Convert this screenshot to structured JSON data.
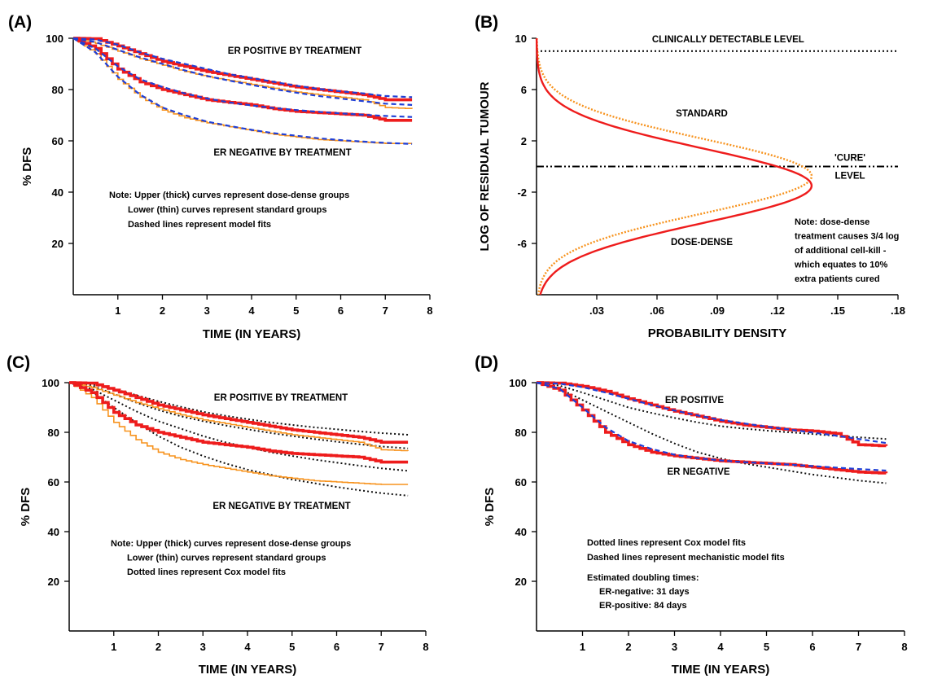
{
  "colors": {
    "dose_dense": "#ee1c1c",
    "standard": "#f7931e",
    "mechanistic_fit": "#1f3fd6",
    "cox_fit": "#111111",
    "axis": "#000000"
  },
  "chart_data": [
    {
      "panel": "(A)",
      "type": "line",
      "xlabel": "TIME (IN YEARS)",
      "ylabel": "% DFS",
      "xlim": [
        0,
        8
      ],
      "ylim": [
        0,
        100
      ],
      "x_ticks": [
        "1",
        "2",
        "3",
        "4",
        "5",
        "6",
        "7",
        "8"
      ],
      "y_ticks": [
        "20",
        "40",
        "60",
        "80",
        "100"
      ],
      "annotations": [
        "ER POSITIVE BY TREATMENT",
        "ER NEGATIVE  BY TREATMENT"
      ],
      "note": [
        "Note: Upper (thick) curves represent dose-dense groups",
        "Lower (thin) curves represent standard groups",
        "Dashed lines represent model fits"
      ],
      "series": [
        {
          "group": "er_pos_dose_dense",
          "style": "step-thick",
          "color": "dose_dense",
          "x": [
            0,
            0.5,
            1,
            1.5,
            2,
            2.5,
            3,
            3.5,
            4,
            4.5,
            5,
            5.5,
            6,
            6.5,
            7,
            7.6
          ],
          "y": [
            100,
            99.8,
            97,
            94,
            91,
            89,
            87,
            85.5,
            84,
            82.5,
            81,
            80,
            79,
            78,
            76,
            76
          ]
        },
        {
          "group": "er_pos_standard",
          "style": "step-thin",
          "color": "standard",
          "x": [
            0,
            0.5,
            1,
            1.5,
            2,
            2.5,
            3,
            3.5,
            4,
            4.5,
            5,
            5.5,
            6,
            6.5,
            7,
            7.6
          ],
          "y": [
            100,
            98,
            95,
            92,
            89.5,
            87,
            85,
            83.5,
            82,
            80.5,
            79,
            78,
            77,
            76,
            73,
            72.5
          ]
        },
        {
          "group": "er_pos_fit_high",
          "style": "dashed",
          "color": "mechanistic_fit",
          "x": [
            0,
            0.5,
            1,
            1.5,
            2,
            2.5,
            3,
            3.5,
            4,
            4.5,
            5,
            5.5,
            6,
            6.5,
            7,
            7.6
          ],
          "y": [
            100,
            99.5,
            97.5,
            94.5,
            92,
            90,
            88,
            86,
            84.5,
            83,
            81.5,
            80.3,
            79.3,
            78.5,
            77.5,
            77
          ]
        },
        {
          "group": "er_pos_fit_low",
          "style": "dashed",
          "color": "mechanistic_fit",
          "x": [
            0,
            0.5,
            1,
            1.5,
            2,
            2.5,
            3,
            3.5,
            4,
            4.5,
            5,
            5.5,
            6,
            6.5,
            7,
            7.6
          ],
          "y": [
            100,
            98.5,
            95.5,
            92.5,
            90,
            87.5,
            85.3,
            83.5,
            81.8,
            80.2,
            78.8,
            77.5,
            76.5,
            75.5,
            74.5,
            74
          ]
        },
        {
          "group": "er_neg_dose_dense",
          "style": "step-thick",
          "color": "dose_dense",
          "x": [
            0,
            0.5,
            1,
            1.5,
            2,
            2.5,
            3,
            3.5,
            4,
            4.5,
            5,
            5.5,
            6,
            6.5,
            7,
            7.6
          ],
          "y": [
            100,
            96,
            88,
            83,
            80,
            78,
            76,
            75,
            74,
            72.5,
            71.5,
            71,
            70.5,
            70,
            68,
            68
          ]
        },
        {
          "group": "er_neg_standard",
          "style": "step-thin",
          "color": "standard",
          "x": [
            0,
            0.5,
            1,
            1.5,
            2,
            2.5,
            3,
            3.5,
            4,
            4.5,
            5,
            5.5,
            6,
            6.5,
            7,
            7.6
          ],
          "y": [
            100,
            94,
            84,
            77,
            72,
            69,
            67,
            65.5,
            64,
            62.5,
            61.5,
            60.5,
            60,
            59.5,
            59,
            59
          ]
        },
        {
          "group": "er_neg_fit_high",
          "style": "dashed",
          "color": "mechanistic_fit",
          "x": [
            0,
            0.5,
            1,
            1.5,
            2,
            2.5,
            3,
            3.5,
            4,
            4.5,
            5,
            5.5,
            6,
            6.5,
            7,
            7.6
          ],
          "y": [
            100,
            96,
            89,
            84,
            81,
            78.5,
            76.5,
            75,
            73.8,
            72.8,
            72,
            71.3,
            70.7,
            70.2,
            69.7,
            69.3
          ]
        },
        {
          "group": "er_neg_fit_low",
          "style": "dashed",
          "color": "mechanistic_fit",
          "x": [
            0,
            0.5,
            1,
            1.5,
            2,
            2.5,
            3,
            3.5,
            4,
            4.5,
            5,
            5.5,
            6,
            6.5,
            7,
            7.6
          ],
          "y": [
            100,
            94.5,
            85,
            78,
            73,
            70,
            67.5,
            65.8,
            64.3,
            63,
            62,
            61,
            60.3,
            59.7,
            59.2,
            58.8
          ]
        }
      ]
    },
    {
      "panel": "(B)",
      "type": "line",
      "xlabel": "PROBABILITY DENSITY",
      "ylabel": "LOG OF RESIDUAL TUMOUR",
      "xlim": [
        0,
        0.18
      ],
      "ylim": [
        -10,
        10
      ],
      "x_ticks": [
        ".03",
        ".06",
        ".09",
        ".12",
        ".15",
        ".18"
      ],
      "y_ticks": [
        "10",
        "6",
        "2",
        "-2",
        "-6"
      ],
      "reference_lines": [
        {
          "label": "CLINICALLY DETECTABLE LEVEL",
          "y": 9,
          "style": "dotted"
        },
        {
          "label_lines": [
            "'CURE'",
            "LEVEL"
          ],
          "y": 0,
          "style": "dash-dot"
        }
      ],
      "annotations": [
        "STANDARD",
        "DOSE-DENSE"
      ],
      "note": [
        "Note: dose-dense",
        "treatment causes 3/4 log",
        "of additional cell-kill -",
        "which equates to 10%",
        "extra patients cured"
      ],
      "curves": [
        {
          "group": "standard",
          "distribution": "normal",
          "mean": -0.75,
          "sd": 2.9,
          "style": "dotted",
          "color": "standard",
          "peak_density": 0.137
        },
        {
          "group": "dose_dense",
          "distribution": "normal",
          "mean": -1.5,
          "sd": 2.9,
          "style": "solid",
          "color": "dose_dense",
          "peak_density": 0.137
        }
      ]
    },
    {
      "panel": "(C)",
      "type": "line",
      "xlabel": "TIME (IN YEARS)",
      "ylabel": "% DFS",
      "xlim": [
        0,
        8
      ],
      "ylim": [
        0,
        100
      ],
      "x_ticks": [
        "1",
        "2",
        "3",
        "4",
        "5",
        "6",
        "7",
        "8"
      ],
      "y_ticks": [
        "20",
        "40",
        "60",
        "80",
        "100"
      ],
      "annotations": [
        "ER POSITIVE  BY TREATMENT",
        "ER NEGATIVE  BY TREATMENT"
      ],
      "note": [
        "Note: Upper (thick) curves represent dose-dense groups",
        "Lower (thin) curves represent standard groups",
        "Dotted lines represent Cox model fits"
      ],
      "series": [
        {
          "group": "er_pos_dose_dense",
          "style": "step-thick",
          "color": "dose_dense",
          "x": [
            0,
            0.5,
            1,
            1.5,
            2,
            2.5,
            3,
            3.5,
            4,
            4.5,
            5,
            5.5,
            6,
            6.5,
            7,
            7.6
          ],
          "y": [
            100,
            99.8,
            97,
            94,
            91,
            89,
            87,
            85.5,
            84,
            82.5,
            81,
            80,
            79,
            78,
            76,
            76
          ]
        },
        {
          "group": "er_pos_standard",
          "style": "step-thin",
          "color": "standard",
          "x": [
            0,
            0.5,
            1,
            1.5,
            2,
            2.5,
            3,
            3.5,
            4,
            4.5,
            5,
            5.5,
            6,
            6.5,
            7,
            7.6
          ],
          "y": [
            100,
            98,
            95,
            92,
            89.5,
            87,
            85,
            83.5,
            82,
            80.5,
            79,
            78,
            77,
            76,
            73,
            72.5
          ]
        },
        {
          "group": "er_neg_dose_dense",
          "style": "step-thick",
          "color": "dose_dense",
          "x": [
            0,
            0.5,
            1,
            1.5,
            2,
            2.5,
            3,
            3.5,
            4,
            4.5,
            5,
            5.5,
            6,
            6.5,
            7,
            7.6
          ],
          "y": [
            100,
            96,
            88,
            83,
            80,
            78,
            76,
            75,
            74,
            72.5,
            71.5,
            71,
            70.5,
            70,
            68,
            68
          ]
        },
        {
          "group": "er_neg_standard",
          "style": "step-thin",
          "color": "standard",
          "x": [
            0,
            0.5,
            1,
            1.5,
            2,
            2.5,
            3,
            3.5,
            4,
            4.5,
            5,
            5.5,
            6,
            6.5,
            7,
            7.6
          ],
          "y": [
            100,
            94,
            84,
            77,
            72,
            69,
            67,
            65.5,
            64,
            62.5,
            61.5,
            60.5,
            60,
            59.5,
            59,
            59
          ]
        },
        {
          "group": "er_pos_cox_1",
          "style": "dotted",
          "color": "cox_fit",
          "x": [
            0,
            0.5,
            1,
            1.5,
            2,
            2.5,
            3,
            3.5,
            4,
            4.5,
            5,
            5.5,
            6,
            6.5,
            7,
            7.6
          ],
          "y": [
            100,
            99.3,
            97.5,
            95,
            92.5,
            90.3,
            88.3,
            86.7,
            85.3,
            84,
            83,
            82,
            81.2,
            80.4,
            79.7,
            79
          ]
        },
        {
          "group": "er_pos_cox_2",
          "style": "dotted",
          "color": "cox_fit",
          "x": [
            0,
            0.5,
            1,
            1.5,
            2,
            2.5,
            3,
            3.5,
            4,
            4.5,
            5,
            5.5,
            6,
            6.5,
            7,
            7.6
          ],
          "y": [
            100,
            98.8,
            95.5,
            92,
            89,
            86.5,
            84.5,
            82.8,
            81.2,
            79.8,
            78.5,
            77.3,
            76.2,
            75.2,
            74.3,
            73.5
          ]
        },
        {
          "group": "er_neg_cox_1",
          "style": "dotted",
          "color": "cox_fit",
          "x": [
            0,
            0.5,
            1,
            1.5,
            2,
            2.5,
            3,
            3.5,
            4,
            4.5,
            5,
            5.5,
            6,
            6.5,
            7,
            7.6
          ],
          "y": [
            100,
            97.5,
            93,
            88.5,
            84.5,
            81.5,
            78.5,
            76,
            74,
            72,
            70.5,
            69,
            67.8,
            66.6,
            65.5,
            64.5
          ]
        },
        {
          "group": "er_neg_cox_2",
          "style": "dotted",
          "color": "cox_fit",
          "x": [
            0,
            0.5,
            1,
            1.5,
            2,
            2.5,
            3,
            3.5,
            4,
            4.5,
            5,
            5.5,
            6,
            6.5,
            7,
            7.6
          ],
          "y": [
            100,
            96.5,
            90,
            84,
            78.5,
            74,
            70.5,
            67.5,
            65,
            63,
            61,
            59.5,
            58,
            56.7,
            55.5,
            54.5
          ]
        }
      ]
    },
    {
      "panel": "(D)",
      "type": "line",
      "xlabel": "TIME (IN YEARS)",
      "ylabel": "% DFS",
      "xlim": [
        0,
        8
      ],
      "ylim": [
        0,
        100
      ],
      "x_ticks": [
        "1",
        "2",
        "3",
        "4",
        "5",
        "6",
        "7",
        "8"
      ],
      "y_ticks": [
        "20",
        "40",
        "60",
        "80",
        "100"
      ],
      "annotations": [
        "ER POSITIVE",
        "ER NEGATIVE"
      ],
      "note": [
        "Dotted lines represent Cox model fits",
        "Dashed lines represent mechanistic model fits"
      ],
      "note2": [
        "Estimated doubling times:",
        "ER-negative: 31 days",
        "ER-positive: 84 days"
      ],
      "series": [
        {
          "group": "er_pos_observed",
          "style": "step-thick",
          "color": "dose_dense",
          "x": [
            0,
            0.5,
            1,
            1.5,
            2,
            2.5,
            3,
            3.5,
            4,
            4.5,
            5,
            5.5,
            6,
            6.5,
            7,
            7.6
          ],
          "y": [
            100,
            99.8,
            98.5,
            96.5,
            93.5,
            91,
            88.5,
            86.5,
            84.5,
            83,
            82,
            81,
            80.5,
            79.5,
            75,
            74.5
          ]
        },
        {
          "group": "er_pos_mechanistic",
          "style": "dashed",
          "color": "mechanistic_fit",
          "x": [
            0,
            0.5,
            1,
            1.5,
            2,
            2.5,
            3,
            3.5,
            4,
            4.5,
            5,
            5.5,
            6,
            6.5,
            7,
            7.6
          ],
          "y": [
            100,
            99.6,
            98.2,
            96,
            93.5,
            91,
            88.8,
            86.8,
            85,
            83.6,
            82.3,
            81.1,
            79.9,
            78.7,
            77.3,
            75.7
          ]
        },
        {
          "group": "er_pos_cox",
          "style": "dotted",
          "color": "cox_fit",
          "x": [
            0,
            0.5,
            1,
            1.5,
            2,
            2.5,
            3,
            3.5,
            4,
            4.5,
            5,
            5.5,
            6,
            6.5,
            7,
            7.6
          ],
          "y": [
            100,
            98.8,
            96,
            93,
            90,
            87.8,
            85.8,
            84,
            82.5,
            81.5,
            80.7,
            80,
            79.3,
            78.6,
            78,
            77.3
          ]
        },
        {
          "group": "er_neg_observed",
          "style": "step-thick",
          "color": "dose_dense",
          "x": [
            0,
            0.5,
            1,
            1.5,
            2,
            2.5,
            3,
            3.5,
            4,
            4.5,
            5,
            5.5,
            6,
            6.5,
            7,
            7.6
          ],
          "y": [
            100,
            97,
            89,
            80,
            75,
            72,
            70.5,
            69.5,
            68.5,
            68,
            67.5,
            67,
            66,
            65,
            64,
            63.5
          ]
        },
        {
          "group": "er_neg_mechanistic",
          "style": "dashed",
          "color": "mechanistic_fit",
          "x": [
            0,
            0.5,
            1,
            1.5,
            2,
            2.5,
            3,
            3.5,
            4,
            4.5,
            5,
            5.5,
            6,
            6.5,
            7,
            7.6
          ],
          "y": [
            100,
            97.5,
            90,
            82,
            76.5,
            73.3,
            71,
            69.6,
            68.7,
            68,
            67.5,
            67,
            66.4,
            65.8,
            65.2,
            64.6
          ]
        },
        {
          "group": "er_neg_cox",
          "style": "dotted",
          "color": "cox_fit",
          "x": [
            0,
            0.5,
            1,
            1.5,
            2,
            2.5,
            3,
            3.5,
            4,
            4.5,
            5,
            5.5,
            6,
            6.5,
            7,
            7.6
          ],
          "y": [
            100,
            97.5,
            93,
            88.5,
            84,
            79.5,
            75.5,
            72,
            69.5,
            67.5,
            66,
            64.5,
            63,
            61.8,
            60.6,
            59.5
          ]
        }
      ]
    }
  ]
}
